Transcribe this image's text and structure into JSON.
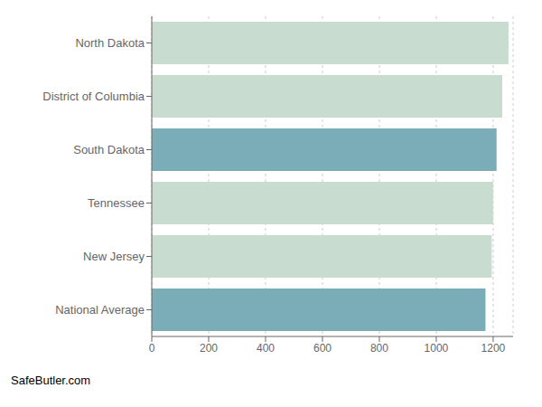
{
  "chart_data": {
    "type": "bar",
    "orientation": "horizontal",
    "categories": [
      "National Average",
      "New Jersey",
      "Tennessee",
      "South Dakota",
      "District of Columbia",
      "North Dakota"
    ],
    "values": [
      1173,
      1195,
      1200,
      1212,
      1232,
      1254
    ],
    "colors": [
      "#7aadb8",
      "#c8ddd0",
      "#c8ddd0",
      "#7aadb8",
      "#c8ddd0",
      "#c8ddd0"
    ],
    "xlim": [
      0,
      1270
    ],
    "xticks": [
      0,
      200,
      400,
      600,
      800,
      1000,
      1200
    ],
    "grid": true,
    "annotations": [
      "SafeButler.com"
    ]
  }
}
